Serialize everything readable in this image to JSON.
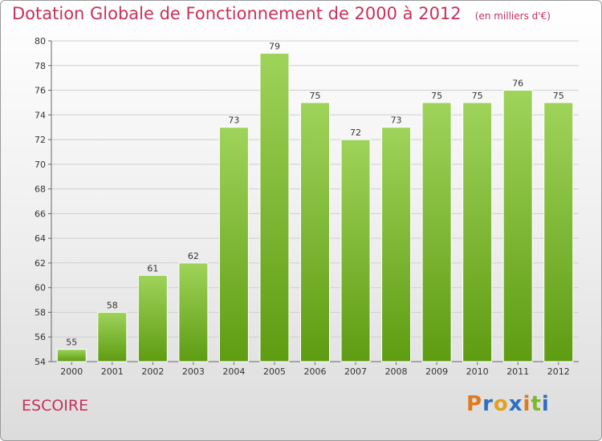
{
  "header": {
    "title": "Dotation Globale de Fonctionnement de 2000 à 2012",
    "unit": "(en milliers d'€)"
  },
  "footer": {
    "commune": "ESCOIRE",
    "logo_text": "Proxiti"
  },
  "colors": {
    "title": "#c8305a",
    "bar_top": "#9fd35a",
    "bar_bottom": "#5e9c12",
    "grid": "#cfcfcf",
    "logo_letters": [
      "#e07a1c",
      "#2b6fc4",
      "#e0a21c",
      "#2b6fc4",
      "#e07a1c",
      "#7ab82c",
      "#2b6fc4"
    ]
  },
  "chart_data": {
    "type": "bar",
    "title": "Dotation Globale de Fonctionnement de 2000 à 2012",
    "xlabel": "",
    "ylabel": "",
    "categories": [
      "2000",
      "2001",
      "2002",
      "2003",
      "2004",
      "2005",
      "2006",
      "2007",
      "2008",
      "2009",
      "2010",
      "2011",
      "2012"
    ],
    "values": [
      55,
      58,
      61,
      62,
      73,
      79,
      75,
      72,
      73,
      75,
      75,
      76,
      75
    ],
    "ylim": [
      54,
      80
    ],
    "yticks": [
      54,
      56,
      58,
      60,
      62,
      64,
      66,
      68,
      70,
      72,
      74,
      76,
      78,
      80
    ],
    "grid": true,
    "legend": "none"
  }
}
